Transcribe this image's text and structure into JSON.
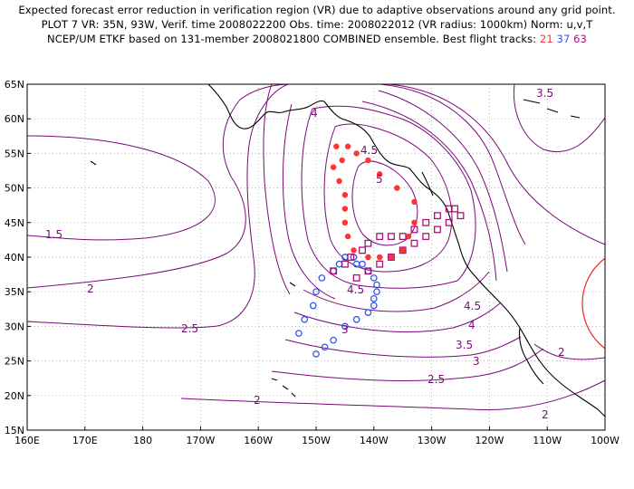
{
  "title": {
    "line1": "Expected forecast error reduction in verification region (VR) due to adaptive observations around any grid point.",
    "line2": "PLOT 7 VR: 35N, 93W, Verif. time 2008022200 Obs. time: 2008022012 (VR radius: 1000km) Norm: u,v,T",
    "line3_prefix": "NCEP/UM ETKF based on 131-member 2008021800 COMBINED ensemble.  Best flight tracks:",
    "track_red": "21",
    "track_blue": "37",
    "track_purple": "63"
  },
  "axes": {
    "lat_labels": [
      "65N",
      "60N",
      "55N",
      "50N",
      "45N",
      "40N",
      "35N",
      "30N",
      "25N",
      "20N",
      "15N"
    ],
    "lon_labels": [
      "160E",
      "170E",
      "180",
      "170W",
      "160W",
      "150W",
      "140W",
      "130W",
      "120W",
      "110W",
      "100W"
    ]
  },
  "contour_labels": [
    "3.5",
    "4",
    "4.5",
    "5",
    "1.5",
    "2",
    "2.5",
    "3",
    "3.5",
    "4",
    "4.5",
    "4.5",
    "2.5",
    "3",
    "2",
    "2",
    "2"
  ],
  "colors": {
    "contour": "#7a0a7a",
    "red_track": "#ff3333",
    "blue_track": "#3355ee",
    "purple_track": "#aa1177",
    "vr_circle": "#ee2222",
    "coast": "#000000"
  },
  "chart_data": {
    "type": "map",
    "projection": "lat-lon",
    "lon_range": [
      "160E",
      "100W"
    ],
    "lat_range": [
      15,
      65
    ],
    "grid": true,
    "verification_region": {
      "lat": 35,
      "lon": "93W",
      "radius_km": 1000
    },
    "tracks": {
      "red_21": [
        [
          56,
          146.5
        ],
        [
          56,
          144.5
        ],
        [
          54,
          145.5
        ],
        [
          53,
          147
        ],
        [
          51,
          146
        ],
        [
          49,
          145
        ],
        [
          47,
          145
        ],
        [
          45,
          145
        ],
        [
          43,
          144.5
        ],
        [
          41,
          143.5
        ],
        [
          40,
          141
        ],
        [
          40,
          139
        ],
        [
          40,
          137
        ],
        [
          41,
          135
        ],
        [
          43,
          134
        ],
        [
          45,
          133
        ],
        [
          48,
          133
        ],
        [
          50,
          136
        ],
        [
          52,
          139
        ],
        [
          54,
          141
        ],
        [
          55,
          143
        ]
      ],
      "blue_37": [
        [
          26,
          150
        ],
        [
          27,
          148.5
        ],
        [
          28,
          147
        ],
        [
          30,
          145
        ],
        [
          31,
          143
        ],
        [
          32,
          141
        ],
        [
          33,
          140
        ],
        [
          34,
          140
        ],
        [
          35,
          139.5
        ],
        [
          36,
          139.5
        ],
        [
          37,
          140
        ],
        [
          38,
          141
        ],
        [
          39,
          142
        ],
        [
          39,
          143
        ],
        [
          40,
          143.5
        ],
        [
          40,
          145
        ],
        [
          39,
          146
        ],
        [
          38,
          147
        ],
        [
          37,
          149
        ],
        [
          35,
          150
        ],
        [
          33,
          150.5
        ],
        [
          31,
          152
        ],
        [
          29,
          153
        ]
      ],
      "purple_63": [
        [
          38,
          147
        ],
        [
          39,
          145
        ],
        [
          40,
          144
        ],
        [
          41,
          142
        ],
        [
          42,
          141
        ],
        [
          43,
          139
        ],
        [
          43,
          137
        ],
        [
          43,
          135
        ],
        [
          44,
          133
        ],
        [
          45,
          131
        ],
        [
          46,
          129
        ],
        [
          47,
          127
        ],
        [
          47,
          126
        ],
        [
          46,
          125
        ],
        [
          45,
          127
        ],
        [
          44,
          129
        ],
        [
          43,
          131
        ],
        [
          42,
          133
        ],
        [
          41,
          135
        ],
        [
          40,
          137
        ],
        [
          39,
          139
        ],
        [
          38,
          141
        ],
        [
          37,
          143
        ]
      ]
    },
    "contour_levels": [
      1.5,
      2,
      2.5,
      3,
      3.5,
      4,
      4.5,
      5
    ]
  }
}
